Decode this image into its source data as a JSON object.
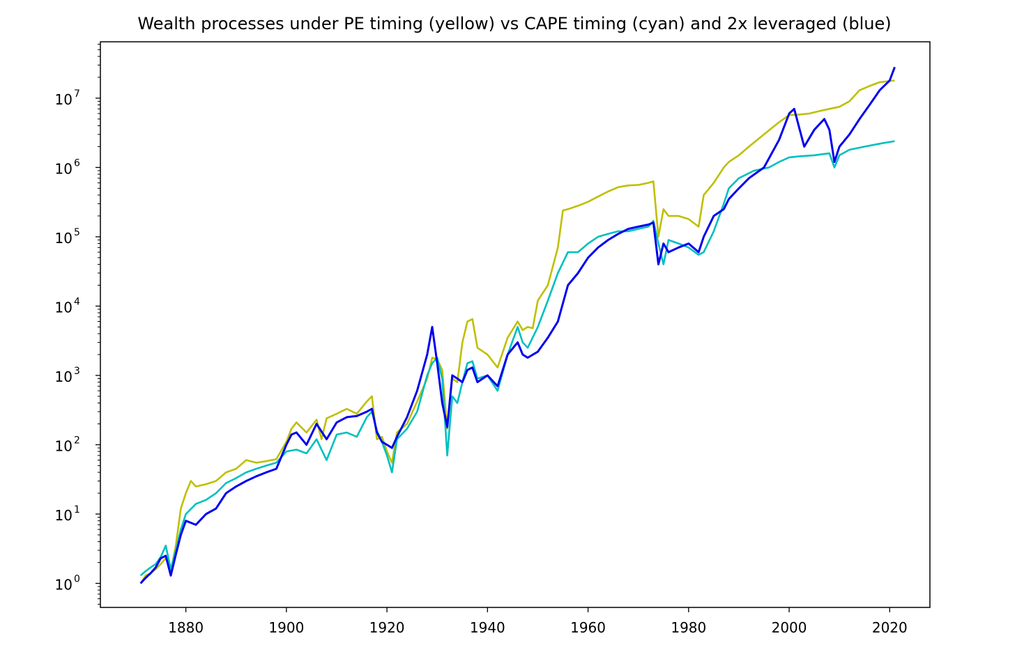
{
  "chart_data": {
    "type": "line",
    "title": "Wealth processes under PE timing (yellow) vs CAPE timing (cyan) and 2x leveraged (blue)",
    "xlabel": "",
    "ylabel": "",
    "xlim": [
      1863,
      2028
    ],
    "ylim": [
      0.45,
      65000000
    ],
    "yscale": "log",
    "grid": false,
    "x_ticks": [
      1880,
      1900,
      1920,
      1940,
      1960,
      1980,
      2000,
      2020
    ],
    "y_tick_exponents": [
      0,
      1,
      2,
      3,
      4,
      5,
      6,
      7
    ],
    "y_tick_labels": [
      {
        "base": "10",
        "exp": "0"
      },
      {
        "base": "10",
        "exp": "1"
      },
      {
        "base": "10",
        "exp": "2"
      },
      {
        "base": "10",
        "exp": "3"
      },
      {
        "base": "10",
        "exp": "4"
      },
      {
        "base": "10",
        "exp": "5"
      },
      {
        "base": "10",
        "exp": "6"
      },
      {
        "base": "10",
        "exp": "7"
      }
    ],
    "series": [
      {
        "color": "#bfbf00",
        "x": [
          1871,
          1872,
          1873,
          1874,
          1875,
          1876,
          1877,
          1878,
          1879,
          1880,
          1881,
          1882,
          1884,
          1886,
          1888,
          1890,
          1892,
          1894,
          1896,
          1898,
          1900,
          1901,
          1902,
          1904,
          1906,
          1907,
          1908,
          1910,
          1912,
          1914,
          1916,
          1917,
          1918,
          1919,
          1920,
          1921,
          1922,
          1924,
          1926,
          1928,
          1929,
          1930,
          1931,
          1932,
          1933,
          1934,
          1935,
          1936,
          1937,
          1938,
          1940,
          1942,
          1944,
          1946,
          1947,
          1948,
          1949,
          1950,
          1952,
          1954,
          1955,
          1956,
          1958,
          1960,
          1962,
          1964,
          1966,
          1968,
          1970,
          1972,
          1973,
          1974,
          1975,
          1976,
          1978,
          1980,
          1982,
          1983,
          1985,
          1987,
          1988,
          1990,
          1992,
          1995,
          1998,
          2000,
          2002,
          2004,
          2006,
          2008,
          2010,
          2012,
          2014,
          2016,
          2018,
          2021
        ],
        "y": [
          1.0,
          1.3,
          1.4,
          1.6,
          1.9,
          2.3,
          1.5,
          3.5,
          12,
          20,
          30,
          25,
          27,
          30,
          40,
          45,
          60,
          55,
          58,
          62,
          110,
          170,
          210,
          150,
          230,
          120,
          240,
          280,
          330,
          280,
          420,
          500,
          120,
          130,
          80,
          55,
          150,
          200,
          420,
          900,
          1800,
          1700,
          1200,
          170,
          900,
          800,
          3000,
          6000,
          6500,
          2500,
          2000,
          1300,
          3500,
          6000,
          4500,
          5000,
          4800,
          12000,
          20000,
          70000,
          240000,
          250000,
          280000,
          320000,
          380000,
          450000,
          520000,
          550000,
          560000,
          600000,
          630000,
          100000,
          250000,
          200000,
          200000,
          180000,
          140000,
          400000,
          600000,
          1000000,
          1200000,
          1500000,
          2000000,
          3000000,
          4500000,
          5700000,
          5800000,
          6000000,
          6500000,
          7000000,
          7500000,
          9000000,
          13000000,
          15000000,
          17000000,
          18000000
        ]
      },
      {
        "color": "#00bfbf",
        "x": [
          1871,
          1872,
          1873,
          1874,
          1875,
          1876,
          1877,
          1878,
          1879,
          1880,
          1882,
          1884,
          1886,
          1888,
          1890,
          1892,
          1894,
          1896,
          1898,
          1900,
          1902,
          1904,
          1906,
          1908,
          1910,
          1912,
          1914,
          1916,
          1917,
          1918,
          1919,
          1920,
          1921,
          1922,
          1924,
          1926,
          1928,
          1929,
          1930,
          1931,
          1932,
          1933,
          1934,
          1935,
          1936,
          1937,
          1938,
          1940,
          1942,
          1944,
          1946,
          1947,
          1948,
          1950,
          1952,
          1954,
          1956,
          1958,
          1960,
          1962,
          1964,
          1966,
          1968,
          1970,
          1972,
          1973,
          1974,
          1975,
          1976,
          1978,
          1980,
          1982,
          1983,
          1985,
          1987,
          1988,
          1990,
          1993,
          1996,
          1998,
          2000,
          2002,
          2005,
          2008,
          2009,
          2010,
          2012,
          2015,
          2018,
          2021
        ],
        "y": [
          1.3,
          1.5,
          1.7,
          1.9,
          2.4,
          3.5,
          1.6,
          3.0,
          6,
          10,
          14,
          16,
          20,
          28,
          33,
          40,
          45,
          50,
          55,
          80,
          85,
          75,
          120,
          60,
          140,
          150,
          130,
          250,
          300,
          160,
          110,
          70,
          40,
          120,
          170,
          300,
          1000,
          1500,
          1800,
          900,
          70,
          500,
          400,
          800,
          1500,
          1600,
          900,
          1000,
          600,
          2000,
          5000,
          3000,
          2500,
          5000,
          12000,
          30000,
          60000,
          60000,
          80000,
          100000,
          110000,
          120000,
          120000,
          130000,
          140000,
          170000,
          80000,
          40000,
          90000,
          80000,
          70000,
          55000,
          60000,
          120000,
          300000,
          500000,
          700000,
          900000,
          1000000,
          1200000,
          1400000,
          1450000,
          1500000,
          1600000,
          1000000,
          1500000,
          1800000,
          2000000,
          2200000,
          2400000
        ]
      },
      {
        "color": "#0000ee",
        "x": [
          1871,
          1872,
          1873,
          1874,
          1875,
          1876,
          1877,
          1878,
          1879,
          1880,
          1882,
          1884,
          1886,
          1888,
          1890,
          1892,
          1894,
          1896,
          1898,
          1900,
          1901,
          1902,
          1904,
          1906,
          1908,
          1910,
          1912,
          1914,
          1916,
          1917,
          1918,
          1919,
          1920,
          1921,
          1922,
          1924,
          1926,
          1928,
          1929,
          1930,
          1931,
          1932,
          1933,
          1934,
          1935,
          1936,
          1937,
          1938,
          1940,
          1942,
          1944,
          1946,
          1947,
          1948,
          1950,
          1952,
          1954,
          1956,
          1958,
          1960,
          1962,
          1964,
          1966,
          1968,
          1970,
          1972,
          1973,
          1974,
          1975,
          1976,
          1978,
          1980,
          1982,
          1983,
          1985,
          1987,
          1988,
          1990,
          1992,
          1995,
          1998,
          2000,
          2001,
          2003,
          2005,
          2007,
          2008,
          2009,
          2010,
          2012,
          2014,
          2016,
          2018,
          2020,
          2021
        ],
        "y": [
          1.0,
          1.2,
          1.4,
          1.7,
          2.3,
          2.5,
          1.3,
          2.6,
          5,
          8,
          7,
          10,
          12,
          20,
          25,
          30,
          35,
          40,
          45,
          100,
          140,
          150,
          100,
          200,
          120,
          210,
          250,
          260,
          300,
          330,
          150,
          110,
          100,
          90,
          130,
          250,
          600,
          2000,
          5000,
          1500,
          400,
          180,
          1000,
          900,
          800,
          1200,
          1300,
          800,
          1000,
          700,
          2000,
          3000,
          2000,
          1800,
          2200,
          3500,
          6000,
          20000,
          30000,
          50000,
          70000,
          90000,
          110000,
          130000,
          140000,
          150000,
          160000,
          40000,
          80000,
          60000,
          70000,
          80000,
          60000,
          100000,
          200000,
          250000,
          350000,
          500000,
          700000,
          1000000,
          2500000,
          6000000,
          7000000,
          2000000,
          3500000,
          5000000,
          3500000,
          1200000,
          2000000,
          3000000,
          5000000,
          8000000,
          13000000,
          18000000,
          28000000
        ]
      }
    ]
  }
}
